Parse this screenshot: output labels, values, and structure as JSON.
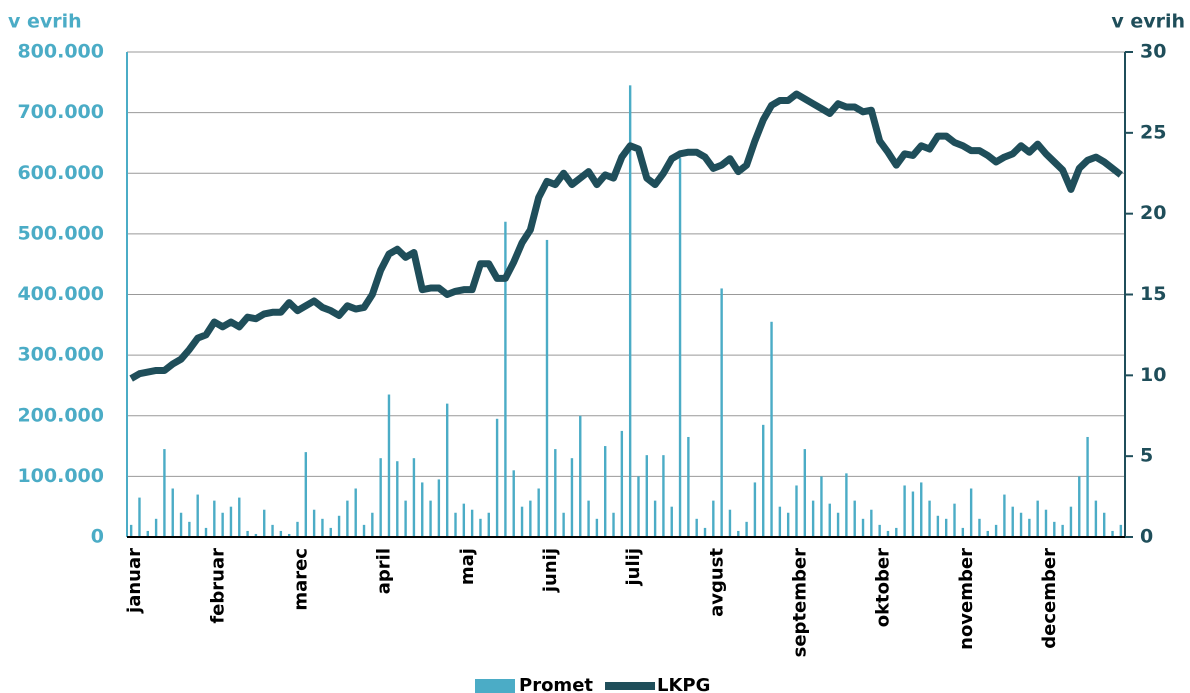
{
  "chart_data": {
    "type": "bar_line",
    "y_label": "v evrih",
    "y2_label": "v evrih",
    "categories": [
      "januar",
      null,
      null,
      null,
      null,
      null,
      null,
      null,
      null,
      null,
      "februar",
      null,
      null,
      null,
      null,
      null,
      null,
      null,
      null,
      null,
      "marec",
      null,
      null,
      null,
      null,
      null,
      null,
      null,
      null,
      null,
      "april",
      null,
      null,
      null,
      null,
      null,
      null,
      null,
      null,
      null,
      "maj",
      null,
      null,
      null,
      null,
      null,
      null,
      null,
      null,
      null,
      "junij",
      null,
      null,
      null,
      null,
      null,
      null,
      null,
      null,
      null,
      "julij",
      null,
      null,
      null,
      null,
      null,
      null,
      null,
      null,
      null,
      "avgust",
      null,
      null,
      null,
      null,
      null,
      null,
      null,
      null,
      null,
      "september",
      null,
      null,
      null,
      null,
      null,
      null,
      null,
      null,
      null,
      "oktober",
      null,
      null,
      null,
      null,
      null,
      null,
      null,
      null,
      null,
      "november",
      null,
      null,
      null,
      null,
      null,
      null,
      null,
      null,
      null,
      "december",
      null,
      null,
      null,
      null,
      null,
      null,
      null,
      null,
      null
    ],
    "series": [
      {
        "name": "Promet",
        "type": "bar",
        "color": "#4bacc6",
        "values": [
          20000,
          65000,
          10000,
          30000,
          145000,
          80000,
          40000,
          25000,
          70000,
          15000,
          60000,
          40000,
          50000,
          65000,
          10000,
          5000,
          45000,
          20000,
          10000,
          5000,
          25000,
          140000,
          45000,
          30000,
          15000,
          35000,
          60000,
          80000,
          20000,
          40000,
          130000,
          235000,
          125000,
          60000,
          130000,
          90000,
          60000,
          95000,
          220000,
          40000,
          55000,
          45000,
          30000,
          40000,
          195000,
          520000,
          110000,
          50000,
          60000,
          80000,
          490000,
          145000,
          40000,
          130000,
          200000,
          60000,
          30000,
          150000,
          40000,
          175000,
          745000,
          100000,
          135000,
          60000,
          135000,
          50000,
          625000,
          165000,
          30000,
          15000,
          60000,
          410000,
          45000,
          10000,
          25000,
          90000,
          185000,
          355000,
          50000,
          40000,
          85000,
          145000,
          60000,
          100000,
          55000,
          40000,
          105000,
          60000,
          30000,
          45000,
          20000,
          10000,
          15000,
          85000,
          75000,
          90000,
          60000,
          35000,
          30000,
          55000,
          15000,
          80000,
          30000,
          10000,
          20000,
          70000,
          50000,
          40000,
          30000,
          60000,
          45000,
          25000,
          20000,
          50000,
          100000,
          165000,
          60000,
          40000,
          10000,
          20000
        ]
      },
      {
        "name": "LKPG",
        "type": "line",
        "axis": "y2",
        "color": "#1f4e5a",
        "values": [
          9.8,
          10.1,
          10.2,
          10.3,
          10.3,
          10.7,
          11.0,
          11.6,
          12.3,
          12.5,
          13.3,
          13.0,
          13.3,
          13.0,
          13.6,
          13.5,
          13.8,
          13.9,
          13.9,
          14.5,
          14.0,
          14.3,
          14.6,
          14.2,
          14.0,
          13.7,
          14.3,
          14.1,
          14.2,
          15.0,
          16.5,
          17.5,
          17.8,
          17.3,
          17.6,
          15.3,
          15.4,
          15.4,
          15.0,
          15.2,
          15.3,
          15.3,
          16.9,
          16.9,
          16.0,
          16.0,
          17.0,
          18.2,
          19.0,
          21.0,
          22.0,
          21.8,
          22.5,
          21.8,
          22.2,
          22.6,
          21.8,
          22.4,
          22.2,
          23.5,
          24.2,
          24.0,
          22.2,
          21.8,
          22.5,
          23.4,
          23.7,
          23.8,
          23.8,
          23.5,
          22.8,
          23.0,
          23.4,
          22.6,
          23.0,
          24.5,
          25.8,
          26.7,
          27.0,
          27.0,
          27.4,
          27.1,
          26.8,
          26.5,
          26.2,
          26.8,
          26.6,
          26.6,
          26.3,
          26.4,
          24.5,
          23.8,
          23.0,
          23.7,
          23.6,
          24.2,
          24.0,
          24.8,
          24.8,
          24.4,
          24.2,
          23.9,
          23.9,
          23.6,
          23.2,
          23.5,
          23.7,
          24.2,
          23.8,
          24.3,
          23.7,
          23.2,
          22.7,
          21.5,
          22.8,
          23.3,
          23.5,
          23.2,
          22.8,
          22.4
        ]
      }
    ],
    "ylim": [
      0,
      800000
    ],
    "yticks": [
      0,
      {
        "value": 100000,
        "label": "100.000"
      },
      {
        "value": 200000,
        "label": "200.000"
      },
      {
        "value": 300000,
        "label": "300.000"
      },
      {
        "value": 400000,
        "label": "400.000"
      },
      {
        "value": 500000,
        "label": "500.000"
      },
      {
        "value": 600000,
        "label": "600.000"
      },
      {
        "value": 700000,
        "label": "700.000"
      },
      {
        "value": 800000,
        "label": "800.000"
      }
    ],
    "y2lim": [
      0,
      30
    ],
    "y2ticks": [
      0,
      5,
      10,
      15,
      20,
      25,
      30
    ],
    "grid": true,
    "legend": "bottom"
  }
}
